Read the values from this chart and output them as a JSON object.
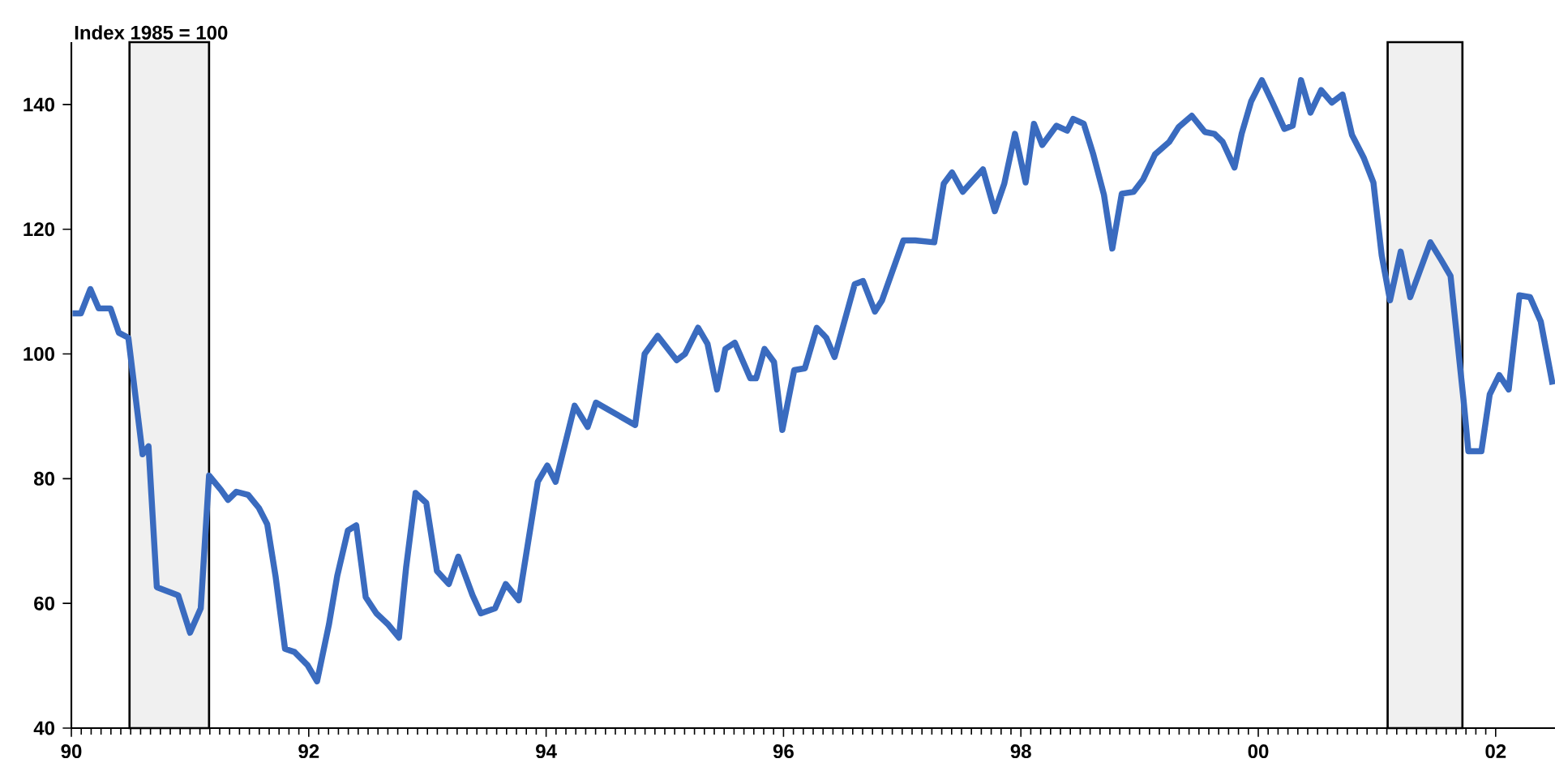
{
  "chart_data": {
    "type": "line",
    "ylabel": "Index 1985 = 100",
    "x": [
      1990.01,
      1990.08,
      1990.16,
      1990.23,
      1990.33,
      1990.4,
      1990.48,
      1990.6,
      1990.65,
      1990.72,
      1990.9,
      1991.0,
      1991.09,
      1991.16,
      1991.26,
      1991.32,
      1991.39,
      1991.49,
      1991.58,
      1991.65,
      1991.72,
      1991.8,
      1991.88,
      1991.99,
      1992.07,
      1992.17,
      1992.24,
      1992.33,
      1992.4,
      1992.48,
      1992.57,
      1992.67,
      1992.76,
      1992.82,
      1992.9,
      1992.99,
      1993.08,
      1993.18,
      1993.26,
      1993.38,
      1993.45,
      1993.57,
      1993.66,
      1993.77,
      1993.93,
      1994.01,
      1994.08,
      1994.24,
      1994.35,
      1994.42,
      1994.75,
      1994.83,
      1994.94,
      1995.1,
      1995.17,
      1995.28,
      1995.36,
      1995.44,
      1995.51,
      1995.59,
      1995.72,
      1995.77,
      1995.84,
      1995.92,
      1995.99,
      1996.09,
      1996.18,
      1996.28,
      1996.36,
      1996.43,
      1996.6,
      1996.67,
      1996.77,
      1996.83,
      1997.01,
      1997.11,
      1997.27,
      1997.35,
      1997.42,
      1997.51,
      1997.68,
      1997.78,
      1997.86,
      1997.95,
      1998.04,
      1998.11,
      1998.18,
      1998.3,
      1998.39,
      1998.44,
      1998.53,
      1998.61,
      1998.7,
      1998.77,
      1998.85,
      1998.95,
      1999.03,
      1999.13,
      1999.25,
      1999.33,
      1999.44,
      1999.55,
      1999.63,
      1999.7,
      1999.8,
      1999.86,
      1999.94,
      2000.03,
      2000.12,
      2000.22,
      2000.29,
      2000.36,
      2000.44,
      2000.53,
      2000.62,
      2000.71,
      2000.79,
      2000.89,
      2000.97,
      2001.04,
      2001.11,
      2001.2,
      2001.28,
      2001.45,
      2001.54,
      2001.62,
      2001.73,
      2001.77,
      2001.88,
      2001.95,
      2002.03,
      2002.11,
      2002.2,
      2002.29,
      2002.38,
      2002.48
    ],
    "series": [
      {
        "color": "#3a6bbf",
        "values": [
          106.5,
          106.5,
          110.4,
          107.3,
          107.3,
          103.4,
          102.6,
          83.9,
          85.2,
          62.6,
          61.3,
          55.3,
          59.2,
          80.5,
          78.2,
          76.6,
          77.9,
          77.4,
          75.3,
          72.7,
          64.4,
          52.7,
          52.2,
          50.1,
          47.5,
          56.6,
          64.4,
          71.7,
          72.5,
          61,
          58.4,
          56.6,
          54.5,
          65.7,
          77.7,
          76.1,
          65.2,
          63.1,
          67.5,
          61.3,
          58.4,
          59.2,
          63.1,
          60.5,
          79.5,
          82.1,
          79.5,
          91.7,
          88.3,
          92.2,
          88.6,
          100,
          102.9,
          99,
          100,
          104.2,
          101.6,
          94.3,
          100.8,
          101.8,
          96.1,
          96.1,
          100.8,
          98.7,
          87.8,
          97.4,
          97.7,
          104.2,
          102.6,
          99.5,
          111.2,
          111.7,
          106.8,
          108.6,
          118.2,
          118.2,
          117.9,
          127.3,
          129.1,
          126,
          129.6,
          122.9,
          127.3,
          135.3,
          127.5,
          136.9,
          133.5,
          136.6,
          135.8,
          137.7,
          136.9,
          132,
          125.5,
          116.9,
          125.7,
          126,
          128,
          132,
          134,
          136.4,
          138.2,
          135.6,
          135.3,
          134,
          129.9,
          135.3,
          140.5,
          143.9,
          140.3,
          136.1,
          136.6,
          143.9,
          138.7,
          142.3,
          140.3,
          141.6,
          135.1,
          131.4,
          127.5,
          115.8,
          108.6,
          116.4,
          109.1,
          117.9,
          115.1,
          112.5,
          92.5,
          84.4,
          84.4,
          93.5,
          96.6,
          94.3,
          109.4,
          109.1,
          105.2,
          95.1
        ]
      }
    ],
    "xlim": [
      1990,
      2002.5
    ],
    "xticks": [
      {
        "value": 1990,
        "label": "90"
      },
      {
        "value": 1992,
        "label": "92"
      },
      {
        "value": 1994,
        "label": "94"
      },
      {
        "value": 1996,
        "label": "96"
      },
      {
        "value": 1998,
        "label": "98"
      },
      {
        "value": 2000,
        "label": "00"
      },
      {
        "value": 2002,
        "label": "02"
      }
    ],
    "ylim": [
      40,
      150
    ],
    "yticks": [
      40,
      60,
      80,
      100,
      120,
      140
    ],
    "bands": [
      {
        "axis": "x",
        "from": 1990.49,
        "to": 1991.16,
        "color": "#000000"
      },
      {
        "axis": "x",
        "from": 2001.09,
        "to": 2001.72,
        "color": "#000000"
      }
    ],
    "grid": false,
    "line_style": "solid"
  }
}
